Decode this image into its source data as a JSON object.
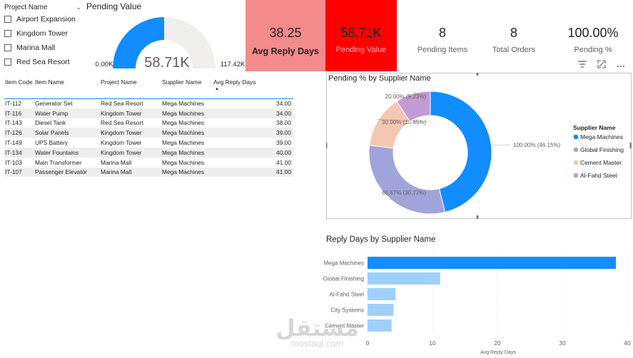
{
  "slicer": {
    "title": "Project Name",
    "items": [
      "Airport Expansion",
      "Kingdom Tower",
      "Marina Mall",
      "Red Sea Resort"
    ]
  },
  "gauge": {
    "title": "Pending Value",
    "value_label": "58.71K",
    "min_label": "0.00K",
    "max_label": "117.42K",
    "value": 58.71,
    "max": 117.42,
    "fill_color": "#118dff",
    "track_color": "#f0efee"
  },
  "kpis": {
    "avg_reply_days": {
      "value": "38.25",
      "label": "Avg Reply Days"
    },
    "pending_value": {
      "value": "58.71K",
      "label": "Pending Value"
    },
    "pending_items": {
      "value": "8",
      "label": "Pending Items"
    },
    "total_orders": {
      "value": "8",
      "label": "Total Orders"
    },
    "pending_pct": {
      "value": "100.00%",
      "label": "Pending %"
    }
  },
  "table": {
    "headers": [
      "Item Code",
      "Item Name",
      "Project Name",
      "Supplier Name",
      "Avg Reply Days"
    ],
    "rows": [
      [
        "IT-112",
        "Generator Set",
        "Red Sea Resort",
        "Mega Machines",
        "34.00"
      ],
      [
        "IT-116",
        "Water Pump",
        "Kingdom Tower",
        "Mega Machines",
        "34.00"
      ],
      [
        "IT-143",
        "Diesel Tank",
        "Red Sea Resort",
        "Mega Machines",
        "38.00"
      ],
      [
        "IT-126",
        "Solar Panels",
        "Kingdom Tower",
        "Mega Machines",
        "39.00"
      ],
      [
        "IT-149",
        "UPS Battery",
        "Kingdom Tower",
        "Mega Machines",
        "39.00"
      ],
      [
        "IT-134",
        "Water Fountains",
        "Kingdom Tower",
        "Mega Machines",
        "40.00"
      ],
      [
        "IT-103",
        "Main Transformer",
        "Marina Mall",
        "Mega Machines",
        "41.00"
      ],
      [
        "IT-107",
        "Passenger Elevator",
        "Marina Mall",
        "Mega Machines",
        "41.00"
      ]
    ]
  },
  "chart_data": [
    {
      "type": "pie",
      "title": "Pending % by Supplier Name",
      "legend_title": "Supplier Name",
      "legend_position": "right",
      "categories": [
        "Mega Machines",
        "Global Finishing",
        "Cement Master",
        "Al-Fahd Steel"
      ],
      "values": [
        46.15,
        30.77,
        13.85,
        9.23
      ],
      "labels": [
        "100.00% (46.15%)",
        "66.67% (30.77%)",
        "30.00% (13.85%)",
        "20.00% (9.23%)"
      ],
      "colors": [
        "#118dff",
        "#a0a4db",
        "#f4c7b0",
        "#c39bd3"
      ]
    },
    {
      "type": "bar",
      "title": "Reply Days by Supplier Name",
      "categories": [
        "Mega Machines",
        "Global Finishing",
        "Al-Fahd Steel",
        "City Systems",
        "Cement Master"
      ],
      "values": [
        38.25,
        11.2,
        4.3,
        4.0,
        3.7
      ],
      "xlabel": "Avg Reply Days",
      "xlim": [
        0,
        40
      ],
      "xticks": [
        "0",
        "10",
        "20",
        "30",
        "40"
      ],
      "colors": [
        "#118dff",
        "#9fd0fb",
        "#9fd0fb",
        "#9fd0fb",
        "#9fd0fb"
      ]
    }
  ],
  "toolbar": {
    "filter_icon": "filter-icon",
    "focus_icon": "focus-mode-icon",
    "more_icon": "more-options-icon"
  },
  "watermark": {
    "arabic": "مستقل",
    "latin": "mostaql.com"
  }
}
